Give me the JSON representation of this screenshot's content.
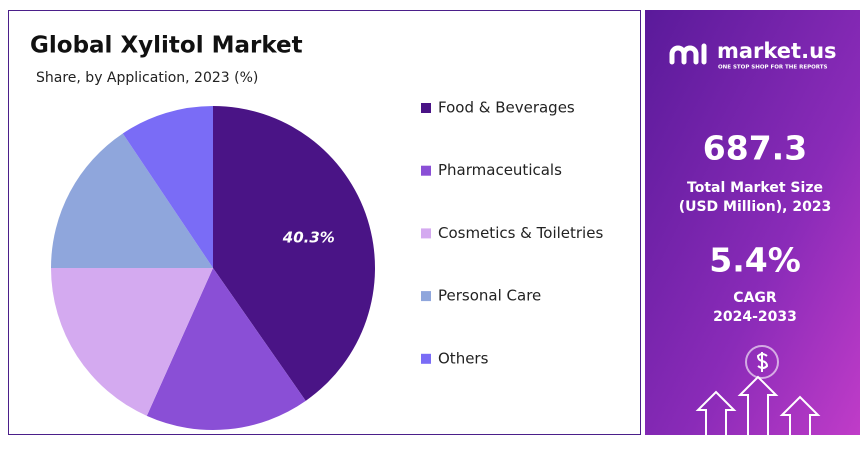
{
  "chart_data": {
    "type": "pie",
    "title": "Global Xylitol Market",
    "subtitle": "Share, by Application, 2023 (%)",
    "categories": [
      "Food & Beverages",
      "Pharmaceuticals",
      "Cosmetics & Toiletries",
      "Personal Care",
      "Others"
    ],
    "values": [
      40.3,
      16.4,
      18.3,
      15.6,
      9.4
    ],
    "value_labels": [
      "40.3%",
      null,
      null,
      null,
      null
    ],
    "colors": [
      "#4a1486",
      "#8a4fd6",
      "#d4aaf0",
      "#8fa6dc",
      "#7a6cf6"
    ],
    "legend": "right"
  },
  "panel": {
    "brand": "market.us",
    "tagline": "ONE STOP SHOP FOR THE REPORTS",
    "market_size": "687.3",
    "market_size_label_1": "Total Market Size",
    "market_size_label_2": "(USD Million), 2023",
    "cagr": "5.4%",
    "cagr_label_1": "CAGR",
    "cagr_label_2": "2024-2033"
  }
}
